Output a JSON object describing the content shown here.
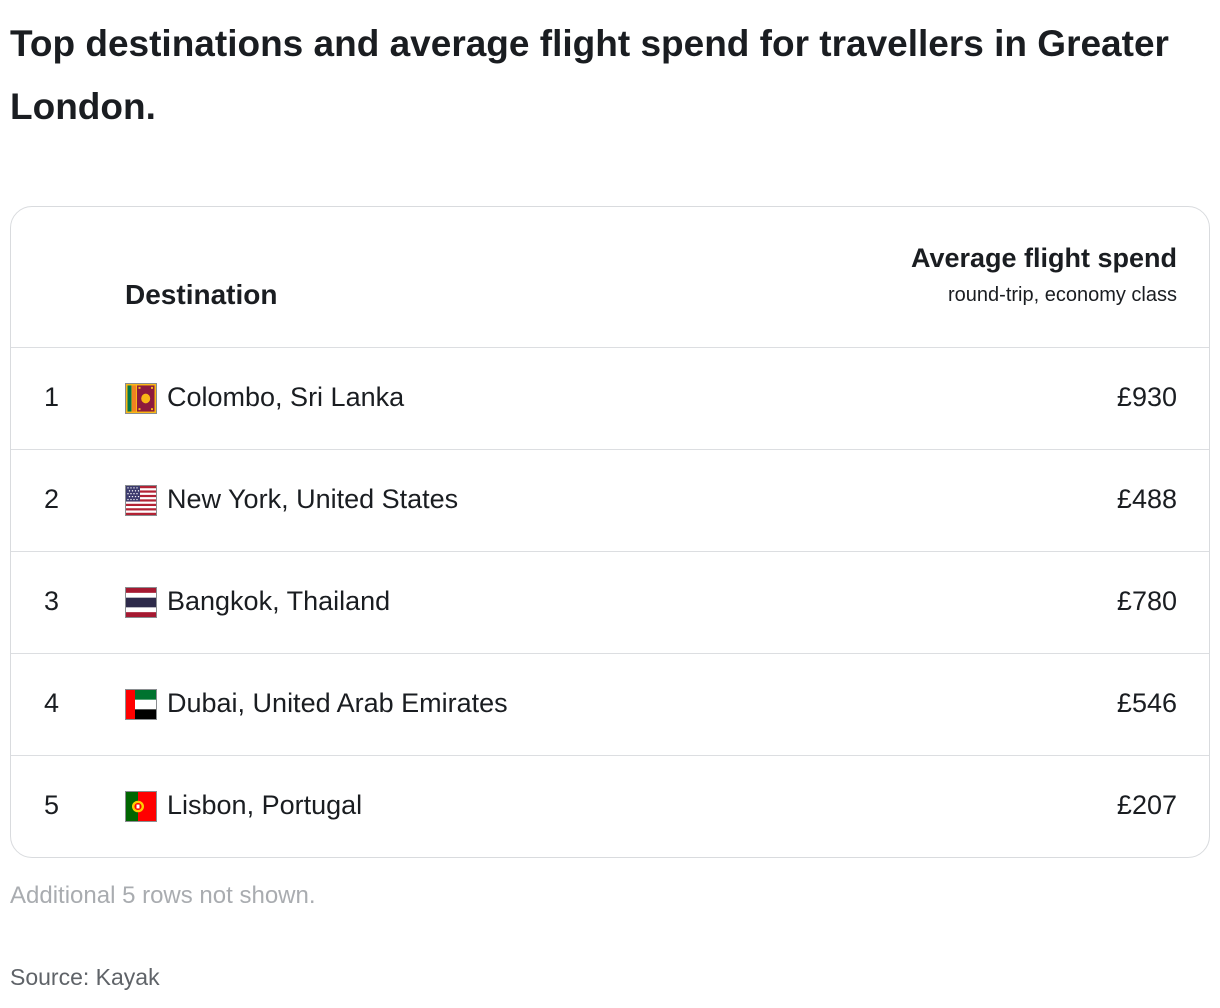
{
  "title": "Top destinations and average flight spend for travellers in Greater London.",
  "table": {
    "header": {
      "destination": "Destination",
      "spend_main": "Average flight spend",
      "spend_sub": "round-trip, economy class"
    },
    "rows": [
      {
        "rank": "1",
        "flag_icon": "sri-lanka-flag-icon",
        "destination": "Colombo, Sri Lanka",
        "spend": "£930"
      },
      {
        "rank": "2",
        "flag_icon": "united-states-flag-icon",
        "destination": "New York, United States",
        "spend": "£488"
      },
      {
        "rank": "3",
        "flag_icon": "thailand-flag-icon",
        "destination": "Bangkok, Thailand",
        "spend": "£780"
      },
      {
        "rank": "4",
        "flag_icon": "uae-flag-icon",
        "destination": "Dubai, United Arab Emirates",
        "spend": "£546"
      },
      {
        "rank": "5",
        "flag_icon": "portugal-flag-icon",
        "destination": "Lisbon, Portugal",
        "spend": "£207"
      }
    ]
  },
  "note": "Additional 5 rows not shown.",
  "source": "Source: Kayak"
}
